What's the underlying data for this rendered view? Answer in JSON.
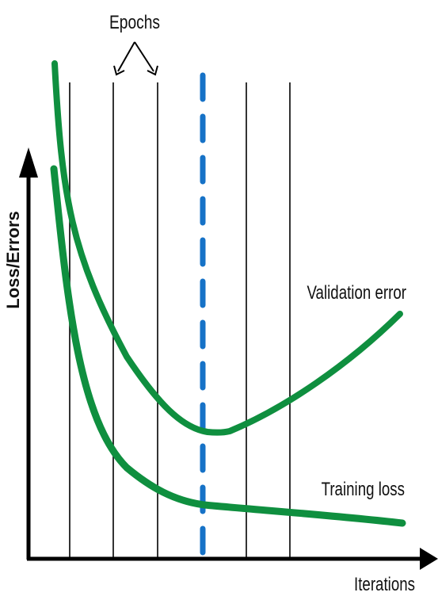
{
  "labels": {
    "epochs": "Epochs",
    "y_axis": "Loss/Errors",
    "x_axis": "Iterations",
    "validation": "Validation error",
    "training": "Training loss"
  },
  "colors": {
    "curve": "#0f8f3f",
    "early_stop_line": "#1672c7",
    "axis": "#000000",
    "epoch_line": "#000000"
  },
  "icons": {
    "epoch_pointer": "epoch-pointer-arrows-icon",
    "y_arrow": "y-axis-arrowhead-icon",
    "x_arrow": "x-axis-arrowhead-icon"
  }
}
